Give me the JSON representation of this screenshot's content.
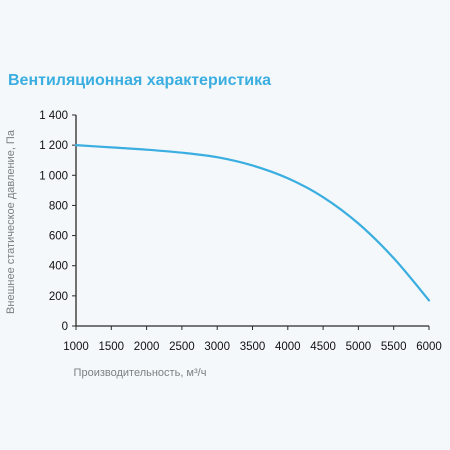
{
  "chart_data": {
    "type": "line",
    "title": "Вентиляционная характеристика",
    "xlabel": "Производительность, м³/ч",
    "ylabel": "Внешнее статическое давление, Па",
    "xlim": [
      1000,
      6000
    ],
    "ylim": [
      0,
      1400
    ],
    "xticks": [
      1000,
      1500,
      2000,
      2500,
      3000,
      3500,
      4000,
      4500,
      5000,
      5500,
      6000
    ],
    "yticks": [
      0,
      200,
      400,
      600,
      800,
      1000,
      1200,
      1400
    ],
    "ytick_labels": [
      "0",
      "200",
      "400",
      "600",
      "800",
      "1 000",
      "1 200",
      "1 400"
    ],
    "grid": false,
    "series": [
      {
        "color": "#3aaee0",
        "x": [
          1000,
          1500,
          2000,
          2500,
          3000,
          3500,
          4000,
          4500,
          5000,
          5500,
          6000
        ],
        "y": [
          1200,
          1185,
          1170,
          1150,
          1120,
          1065,
          980,
          855,
          680,
          450,
          170
        ]
      }
    ]
  }
}
